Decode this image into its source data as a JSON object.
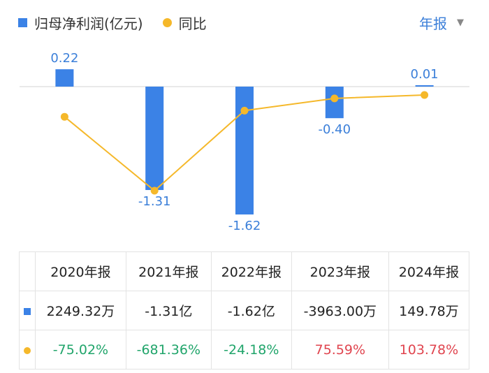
{
  "legend": {
    "bar_label": "归母净利润(亿元)",
    "line_label": "同比"
  },
  "period_selector": {
    "value": "年报"
  },
  "colors": {
    "bar": "#3b82e6",
    "line": "#f5b82a",
    "label": "#3b7fd9",
    "positive": "#e0454f",
    "negative": "#21a56b"
  },
  "chart_data": {
    "type": "bar",
    "categories": [
      "2020年报",
      "2021年报",
      "2022年报",
      "2023年报",
      "2024年报"
    ],
    "series": [
      {
        "name": "归母净利润(亿元)",
        "type": "bar",
        "values": [
          0.22,
          -1.31,
          -1.62,
          -0.4,
          0.01
        ],
        "labels": [
          "0.22",
          "-1.31",
          "-1.62",
          "-0.40",
          "0.01"
        ]
      },
      {
        "name": "同比",
        "type": "line",
        "values": [
          -75.02,
          -681.36,
          -24.18,
          75.59,
          103.78
        ]
      }
    ]
  },
  "table": {
    "headers": [
      "2020年报",
      "2021年报",
      "2022年报",
      "2023年报",
      "2024年报"
    ],
    "rows": [
      {
        "icon": "bar-icon",
        "cells": [
          {
            "text": "2249.32万"
          },
          {
            "text": "-1.31亿"
          },
          {
            "text": "-1.62亿"
          },
          {
            "text": "-3963.00万"
          },
          {
            "text": "149.78万"
          }
        ]
      },
      {
        "icon": "line-dot-icon",
        "cells": [
          {
            "text": "-75.02%",
            "tone": "green"
          },
          {
            "text": "-681.36%",
            "tone": "green"
          },
          {
            "text": "-24.18%",
            "tone": "green"
          },
          {
            "text": "75.59%",
            "tone": "red"
          },
          {
            "text": "103.78%",
            "tone": "red"
          }
        ]
      }
    ]
  }
}
